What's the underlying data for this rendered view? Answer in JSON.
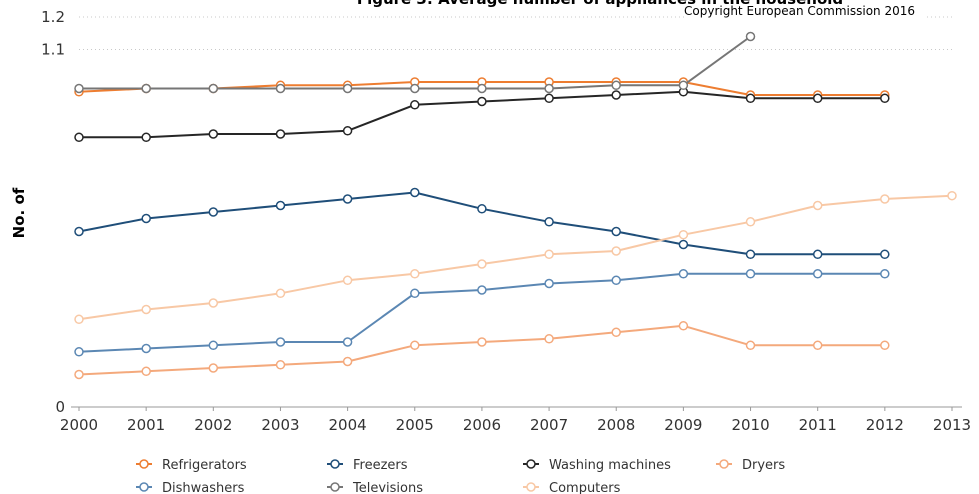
{
  "chart_data": {
    "type": "line",
    "title": "Figure 3: Average number of appliances in the household",
    "copyright": "Copyright European Commission 2016",
    "ylabel": "No. of",
    "xlabel": "",
    "x": [
      2000,
      2001,
      2002,
      2003,
      2004,
      2005,
      2006,
      2007,
      2008,
      2009,
      2010,
      2011,
      2012,
      2013
    ],
    "xlim": [
      2000,
      2013
    ],
    "ylim": [
      0,
      1.2
    ],
    "y_ticks": [
      {
        "value": 0,
        "label": "0"
      },
      {
        "value": 1.1,
        "label": "1.1"
      },
      {
        "value": 1.2,
        "label": "1.2"
      }
    ],
    "grid": true,
    "legend_position": "bottom",
    "series": [
      {
        "name": "Refrigerators",
        "color": "#ed7d31",
        "x": [
          2000,
          2001,
          2002,
          2003,
          2004,
          2005,
          2006,
          2007,
          2008,
          2009,
          2010,
          2011,
          2012
        ],
        "values": [
          0.97,
          0.98,
          0.98,
          0.99,
          0.99,
          1.0,
          1.0,
          1.0,
          1.0,
          1.0,
          0.96,
          0.96,
          0.96
        ]
      },
      {
        "name": "Freezers",
        "color": "#1f4e79",
        "x": [
          2000,
          2001,
          2002,
          2003,
          2004,
          2005,
          2006,
          2007,
          2008,
          2009,
          2010,
          2011,
          2012
        ],
        "values": [
          0.54,
          0.58,
          0.6,
          0.62,
          0.64,
          0.66,
          0.61,
          0.57,
          0.54,
          0.5,
          0.47,
          0.47,
          0.47
        ]
      },
      {
        "name": "Washing machines",
        "color": "#262626",
        "x": [
          2000,
          2001,
          2002,
          2003,
          2004,
          2005,
          2006,
          2007,
          2008,
          2009,
          2010,
          2011,
          2012
        ],
        "values": [
          0.83,
          0.83,
          0.84,
          0.84,
          0.85,
          0.93,
          0.94,
          0.95,
          0.96,
          0.97,
          0.95,
          0.95,
          0.95
        ]
      },
      {
        "name": "Dryers",
        "color": "#f4a97c",
        "x": [
          2000,
          2001,
          2002,
          2003,
          2004,
          2005,
          2006,
          2007,
          2008,
          2009,
          2010,
          2011,
          2012
        ],
        "values": [
          0.1,
          0.11,
          0.12,
          0.13,
          0.14,
          0.19,
          0.2,
          0.21,
          0.23,
          0.25,
          0.19,
          0.19,
          0.19
        ]
      },
      {
        "name": "Dishwashers",
        "color": "#5b87b3",
        "x": [
          2000,
          2001,
          2002,
          2003,
          2004,
          2005,
          2006,
          2007,
          2008,
          2009,
          2010,
          2011,
          2012
        ],
        "values": [
          0.17,
          0.18,
          0.19,
          0.2,
          0.2,
          0.35,
          0.36,
          0.38,
          0.39,
          0.41,
          0.41,
          0.41,
          0.41
        ]
      },
      {
        "name": "Televisions",
        "color": "#767676",
        "x": [
          2000,
          2001,
          2002,
          2003,
          2004,
          2005,
          2006,
          2007,
          2008,
          2009,
          2010
        ],
        "values": [
          0.98,
          0.98,
          0.98,
          0.98,
          0.98,
          0.98,
          0.98,
          0.98,
          0.99,
          0.99,
          1.14
        ]
      },
      {
        "name": "Computers",
        "color": "#f8c8a5",
        "x": [
          2000,
          2001,
          2002,
          2003,
          2004,
          2005,
          2006,
          2007,
          2008,
          2009,
          2010,
          2011,
          2012,
          2013
        ],
        "values": [
          0.27,
          0.3,
          0.32,
          0.35,
          0.39,
          0.41,
          0.44,
          0.47,
          0.48,
          0.53,
          0.57,
          0.62,
          0.64,
          0.65
        ]
      }
    ]
  }
}
